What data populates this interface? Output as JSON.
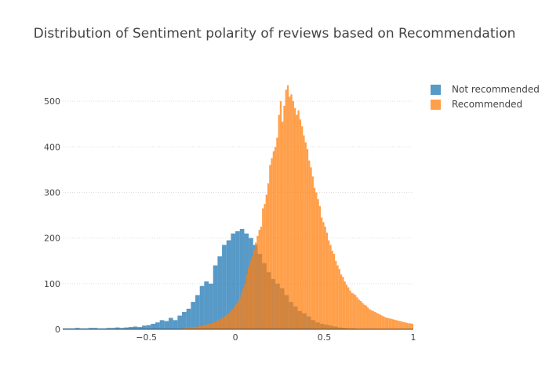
{
  "chart_data": {
    "type": "histogram",
    "title": "Distribution of Sentiment polarity of reviews based on Recommendation",
    "xlabel": "",
    "ylabel": "",
    "xlim": [
      -0.97,
      1.0
    ],
    "ylim": [
      0,
      550
    ],
    "x_ticks": [
      -0.5,
      0,
      0.5,
      1
    ],
    "x_tick_labels": [
      "−0.5",
      "0",
      "0.5",
      "1"
    ],
    "y_ticks": [
      0,
      100,
      200,
      300,
      400,
      500
    ],
    "y_tick_labels": [
      "0",
      "100",
      "200",
      "300",
      "400",
      "500"
    ],
    "grid": "horizontal dotted",
    "legend_position": "top-right",
    "barmode": "overlay",
    "series": [
      {
        "name": "Not recommended",
        "color": "#1f77b4",
        "bin_start": -1.0,
        "bin_width": 0.025,
        "values": [
          2,
          2,
          2,
          2,
          3,
          2,
          2,
          3,
          3,
          2,
          2,
          3,
          3,
          4,
          3,
          4,
          5,
          6,
          5,
          8,
          9,
          12,
          15,
          20,
          18,
          25,
          20,
          30,
          38,
          45,
          60,
          75,
          95,
          105,
          100,
          140,
          160,
          185,
          195,
          210,
          215,
          220,
          210,
          200,
          185,
          165,
          145,
          125,
          110,
          100,
          90,
          75,
          60,
          50,
          40,
          35,
          28,
          20,
          15,
          12,
          10,
          8,
          6,
          4,
          3,
          2,
          2,
          1,
          1,
          1,
          1,
          1,
          0,
          0,
          0,
          0,
          0,
          0,
          0,
          0
        ]
      },
      {
        "name": "Recommended",
        "color": "#ff7f0e",
        "bin_start": -0.3,
        "bin_width": 0.01,
        "values": [
          2,
          2,
          3,
          3,
          4,
          4,
          5,
          5,
          6,
          6,
          7,
          8,
          9,
          10,
          11,
          12,
          13,
          14,
          16,
          18,
          20,
          22,
          25,
          27,
          30,
          32,
          35,
          40,
          45,
          50,
          55,
          60,
          70,
          80,
          90,
          100,
          120,
          135,
          150,
          160,
          175,
          190,
          205,
          218,
          225,
          265,
          275,
          295,
          320,
          360,
          375,
          390,
          400,
          420,
          470,
          500,
          455,
          490,
          525,
          535,
          510,
          515,
          500,
          485,
          470,
          480,
          460,
          445,
          425,
          410,
          395,
          370,
          355,
          335,
          310,
          300,
          285,
          270,
          245,
          235,
          225,
          212,
          195,
          185,
          172,
          165,
          150,
          140,
          132,
          120,
          115,
          105,
          98,
          92,
          85,
          80,
          78,
          75,
          70,
          65,
          62,
          58,
          54,
          52,
          48,
          44,
          42,
          40,
          38,
          36,
          34,
          32,
          30,
          28,
          26,
          25,
          24,
          23,
          22,
          21,
          20,
          19,
          18,
          17,
          16,
          15,
          14,
          13,
          13,
          12,
          12,
          11,
          11,
          10,
          10,
          9,
          9,
          9,
          8,
          8,
          8,
          8,
          7,
          7,
          7,
          7,
          7,
          6,
          6,
          6,
          6,
          6,
          6,
          6,
          6,
          6,
          7,
          8,
          10,
          12,
          38
        ]
      }
    ]
  }
}
